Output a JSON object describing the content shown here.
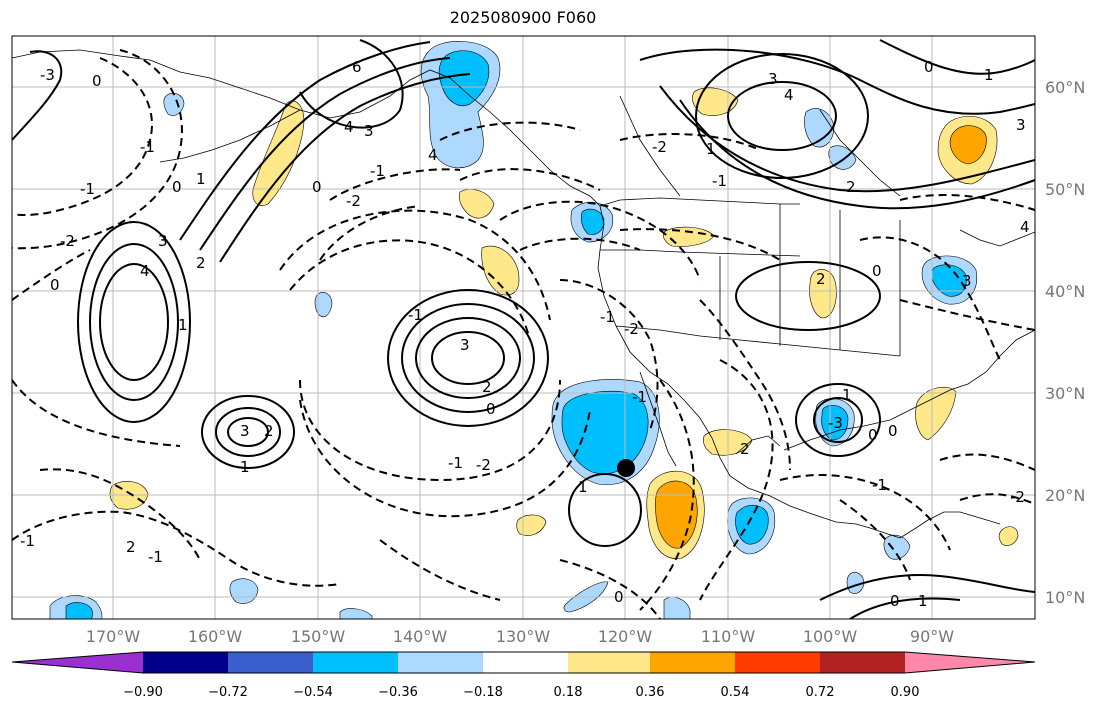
{
  "title": "2025080900 F060",
  "lon_labels": [
    "170°W",
    "160°W",
    "150°W",
    "140°W",
    "130°W",
    "120°W",
    "110°W",
    "100°W",
    "90°W"
  ],
  "lat_labels": [
    "60°N",
    "50°N",
    "40°N",
    "30°N",
    "20°N",
    "10°N"
  ],
  "colorbar": {
    "ticks": [
      "−0.90",
      "−0.72",
      "−0.54",
      "−0.36",
      "−0.18",
      "0.18",
      "0.36",
      "0.54",
      "0.72",
      "0.90"
    ],
    "colors": [
      "#9b30d0",
      "#00008b",
      "#3a5fcd",
      "#00bfff",
      "#add8ff",
      "#ffffff",
      "#ffe88a",
      "#ffa500",
      "#ff3b00",
      "#b22222",
      "#ff88aa"
    ]
  },
  "contour_labels": [
    "0",
    "-1",
    "-2",
    "-3",
    "0",
    "1",
    "2",
    "3",
    "4",
    "6",
    "4",
    "3",
    "0",
    "-1",
    "-2",
    "0",
    "-1",
    "1",
    "2",
    "3",
    "4",
    "-1",
    "0",
    "3",
    "2",
    "1",
    "-1",
    "-2",
    "3",
    "4",
    "1",
    "2",
    "3",
    "-2",
    "0",
    "1",
    "-1",
    "-2",
    "-1",
    "0",
    "1",
    "2",
    "3",
    "4",
    "-3",
    "-1",
    "0",
    "2",
    "-1",
    "1",
    "0",
    "-1",
    "2",
    "1",
    "0",
    "-1",
    "0",
    "-2"
  ],
  "marker": {
    "lat": 23,
    "lon": -120
  }
}
